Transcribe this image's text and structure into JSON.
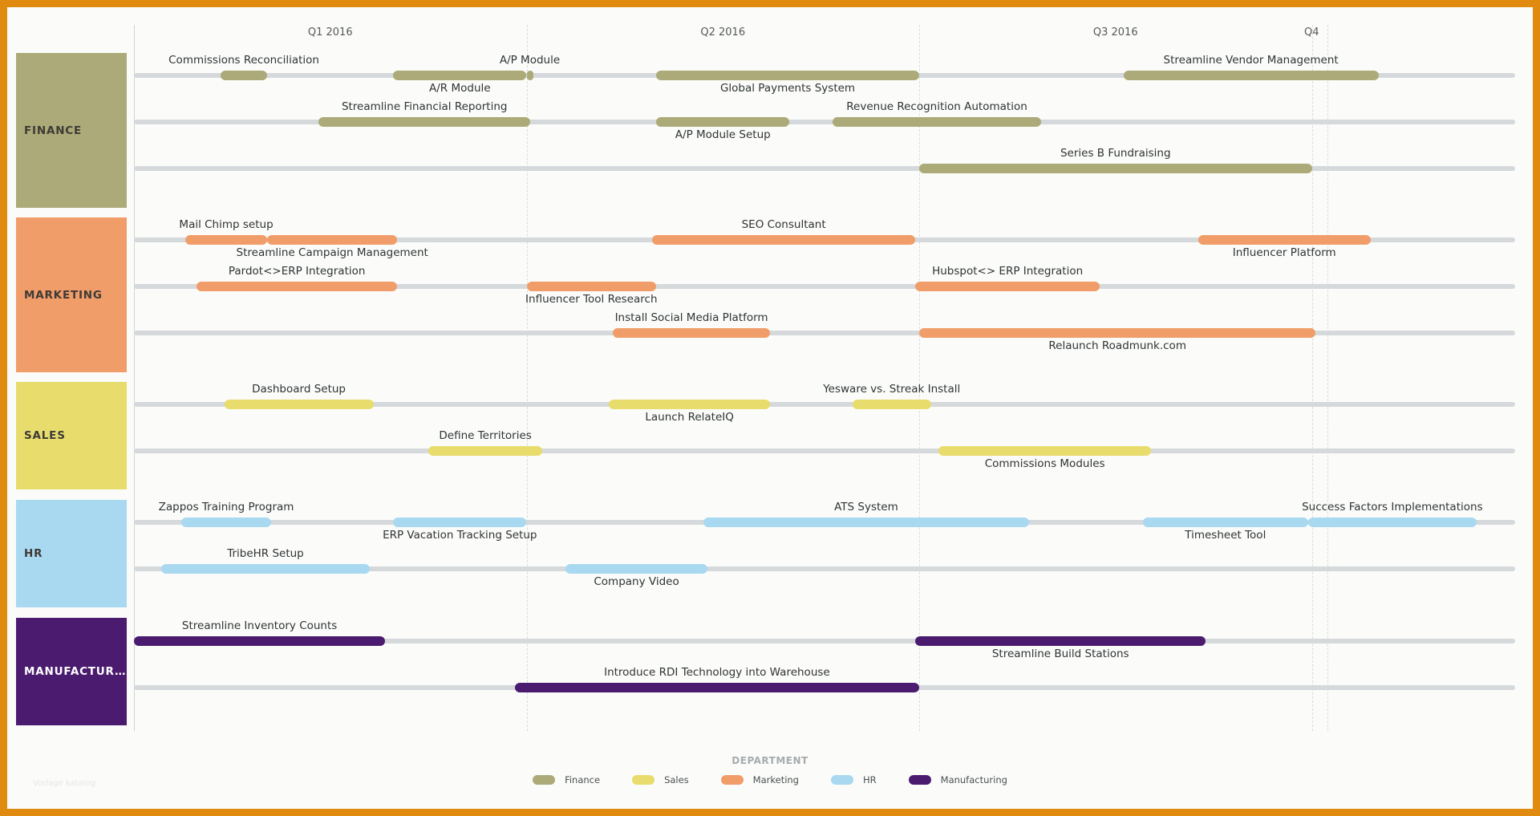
{
  "timeline": {
    "quarters": [
      {
        "label": "Q1 2016",
        "start": 0
      },
      {
        "label": "Q2 2016",
        "start": 1
      },
      {
        "label": "Q3 2016",
        "start": 2
      },
      {
        "label": "Q4",
        "start": 3
      }
    ],
    "visible_end": 3.04
  },
  "lanes": [
    {
      "name": "FINANCE",
      "color": "#abaa78",
      "text": "dark",
      "rows": [
        [
          {
            "name": "Commissions Reconciliation",
            "start": 0.22,
            "end": 0.34,
            "label_pos": "above"
          },
          {
            "name": "A/R Module",
            "start": 0.66,
            "end": 1.0,
            "label_pos": "below"
          },
          {
            "name": "A/P Module",
            "start": 1.0,
            "end": 1.01,
            "label_pos": "above"
          },
          {
            "name": "Global Payments System",
            "start": 1.33,
            "end": 2.0,
            "label_pos": "below"
          },
          {
            "name": "Streamline Vendor Management",
            "start": 2.52,
            "end": 3.17,
            "label_pos": "above"
          }
        ],
        [
          {
            "name": "Streamline Financial Reporting",
            "start": 0.47,
            "end": 1.01,
            "label_pos": "above"
          },
          {
            "name": "A/P Module Setup",
            "start": 1.33,
            "end": 1.67,
            "label_pos": "below"
          },
          {
            "name": "Revenue Recognition Automation",
            "start": 1.78,
            "end": 2.31,
            "label_pos": "above"
          }
        ],
        [
          {
            "name": "Series B Fundraising",
            "start": 2.0,
            "end": 3.0,
            "label_pos": "above"
          }
        ]
      ]
    },
    {
      "name": "MARKETING",
      "color": "#f19d6a",
      "text": "dark",
      "rows": [
        [
          {
            "name": "Mail Chimp setup",
            "start": 0.13,
            "end": 0.34,
            "label_pos": "above"
          },
          {
            "name": "Streamline Campaign Management",
            "start": 0.34,
            "end": 0.67,
            "label_pos": "below"
          },
          {
            "name": "SEO Consultant",
            "start": 1.32,
            "end": 1.99,
            "label_pos": "above"
          },
          {
            "name": "Influencer Platform",
            "start": 2.71,
            "end": 3.15,
            "label_pos": "below"
          }
        ],
        [
          {
            "name": "Pardot<>ERP Integration",
            "start": 0.16,
            "end": 0.67,
            "label_pos": "above"
          },
          {
            "name": "Influencer Tool Research",
            "start": 1.0,
            "end": 1.33,
            "label_pos": "below"
          },
          {
            "name": "Hubspot<> ERP Integration",
            "start": 1.99,
            "end": 2.46,
            "label_pos": "above"
          }
        ],
        [
          {
            "name": "Install Social Media Platform",
            "start": 1.22,
            "end": 1.62,
            "label_pos": "above"
          },
          {
            "name": "Relaunch Roadmunk.com",
            "start": 2.0,
            "end": 3.01,
            "label_pos": "below"
          }
        ]
      ]
    },
    {
      "name": "SALES",
      "color": "#e7dc6c",
      "text": "dark",
      "rows": [
        [
          {
            "name": "Dashboard Setup",
            "start": 0.23,
            "end": 0.61,
            "label_pos": "above"
          },
          {
            "name": "Launch RelateIQ",
            "start": 1.21,
            "end": 1.62,
            "label_pos": "below"
          },
          {
            "name": "Yesware vs. Streak Install",
            "start": 1.83,
            "end": 2.03,
            "label_pos": "above"
          }
        ],
        [
          {
            "name": "Define Territories",
            "start": 0.75,
            "end": 1.04,
            "label_pos": "above"
          },
          {
            "name": "Commissions Modules",
            "start": 2.05,
            "end": 2.59,
            "label_pos": "below"
          }
        ]
      ]
    },
    {
      "name": "HR",
      "color": "#a8d9f1",
      "text": "dark",
      "rows": [
        [
          {
            "name": "Zappos Training Program",
            "start": 0.12,
            "end": 0.35,
            "label_pos": "above"
          },
          {
            "name": "ERP Vacation Tracking Setup",
            "start": 0.66,
            "end": 1.0,
            "label_pos": "below"
          },
          {
            "name": "ATS System",
            "start": 1.45,
            "end": 2.28,
            "label_pos": "above"
          },
          {
            "name": "Timesheet Tool",
            "start": 2.57,
            "end": 2.99,
            "label_pos": "below"
          },
          {
            "name": "Success Factors Implementations",
            "start": 2.99,
            "end": 3.42,
            "label_pos": "above"
          }
        ],
        [
          {
            "name": "TribeHR Setup",
            "start": 0.07,
            "end": 0.6,
            "label_pos": "above"
          },
          {
            "name": "Company Video",
            "start": 1.1,
            "end": 1.46,
            "label_pos": "below"
          }
        ]
      ]
    },
    {
      "name": "MANUFACTUR...",
      "color": "#4b1b70",
      "text": "light",
      "rows": [
        [
          {
            "name": "Streamline Inventory Counts",
            "start": 0.0,
            "end": 0.64,
            "label_pos": "above"
          },
          {
            "name": "Streamline Build Stations",
            "start": 1.99,
            "end": 2.73,
            "label_pos": "below"
          }
        ],
        [
          {
            "name": "Introduce RDI Technology into Warehouse",
            "start": 0.97,
            "end": 2.0,
            "label_pos": "above"
          }
        ]
      ]
    }
  ],
  "legend": {
    "title": "DEPARTMENT",
    "items": [
      {
        "label": "Finance",
        "color": "#abaa78"
      },
      {
        "label": "Sales",
        "color": "#e7dc6c"
      },
      {
        "label": "Marketing",
        "color": "#f19d6a"
      },
      {
        "label": "HR",
        "color": "#a8d9f1"
      },
      {
        "label": "Manufacturing",
        "color": "#4b1b70"
      }
    ]
  },
  "watermark": "Vorlage katalog"
}
